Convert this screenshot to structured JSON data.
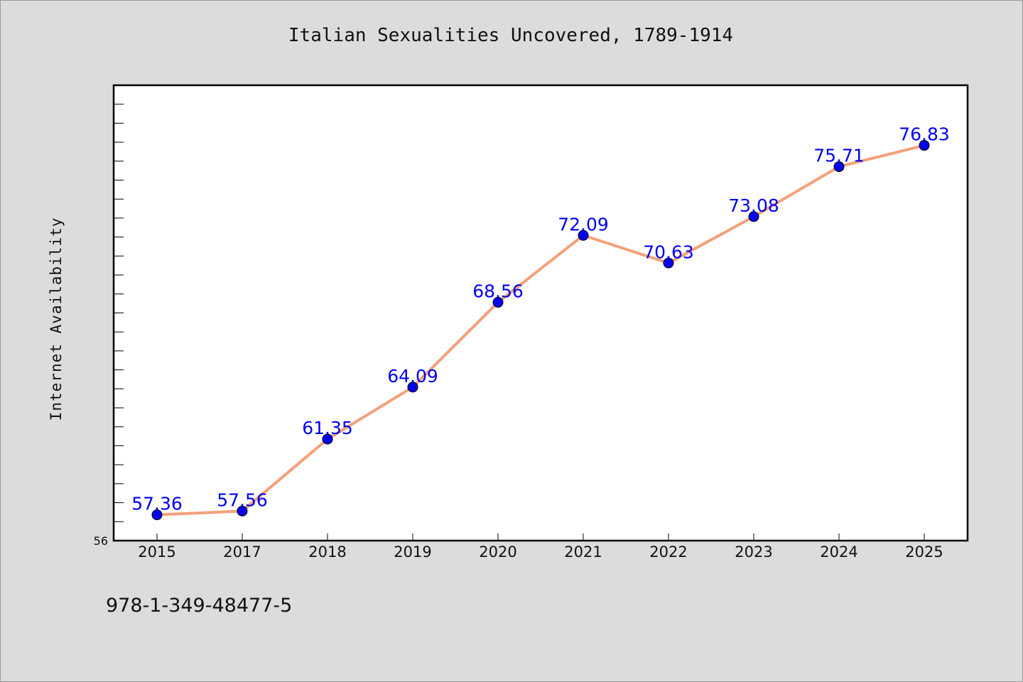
{
  "chart_data": {
    "type": "line",
    "title": "Italian Sexualities Uncovered, 1789-1914",
    "xlabel": "",
    "ylabel": "Internet Availability",
    "categories": [
      "2015",
      "2017",
      "2018",
      "2019",
      "2020",
      "2021",
      "2022",
      "2023",
      "2024",
      "2025"
    ],
    "series": [
      {
        "values": [
          57.36,
          57.56,
          61.35,
          64.09,
          68.56,
          72.09,
          70.63,
          73.08,
          75.71,
          76.83
        ],
        "line_color": "#f4a07a",
        "marker_color": "#0000ee",
        "label_color": "#0000ee"
      }
    ],
    "ylim": [
      56,
      80
    ],
    "ytick_labels": [
      "56"
    ],
    "grid": false,
    "legend": "none",
    "data_labels": true
  },
  "footer": {
    "code": "978-1-349-48477-5"
  }
}
